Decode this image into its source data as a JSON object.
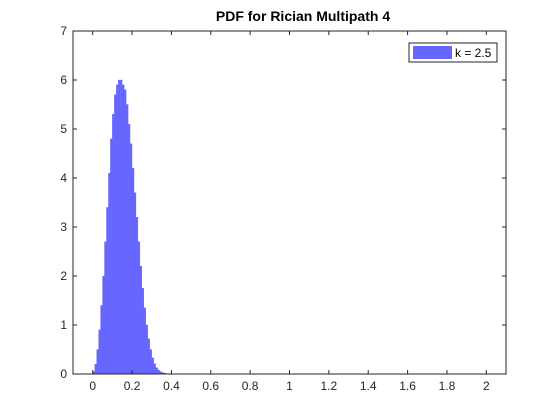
{
  "chart_data": {
    "type": "bar",
    "title": "PDF for Rician Multipath 4",
    "xlabel": "",
    "ylabel": "",
    "xlim": [
      -0.1,
      2.1
    ],
    "ylim": [
      0,
      7
    ],
    "xticks": [
      "0",
      "0.2",
      "0.4",
      "0.6",
      "0.8",
      "1",
      "1.2",
      "1.4",
      "1.6",
      "1.8",
      "2"
    ],
    "xtick_values": [
      0,
      0.2,
      0.4,
      0.6,
      0.8,
      1,
      1.2,
      1.4,
      1.6,
      1.8,
      2
    ],
    "yticks": [
      "0",
      "1",
      "2",
      "3",
      "4",
      "5",
      "6",
      "7"
    ],
    "ytick_values": [
      0,
      1,
      2,
      3,
      4,
      5,
      6,
      7
    ],
    "grid": false,
    "legend_position": "top-right",
    "series": [
      {
        "name": "k = 2.5",
        "color": "#6666ff",
        "x": [
          0.0,
          0.01,
          0.02,
          0.03,
          0.04,
          0.05,
          0.06,
          0.07,
          0.08,
          0.09,
          0.1,
          0.11,
          0.12,
          0.13,
          0.14,
          0.15,
          0.16,
          0.17,
          0.18,
          0.19,
          0.2,
          0.21,
          0.22,
          0.23,
          0.24,
          0.25,
          0.26,
          0.27,
          0.28,
          0.29,
          0.3,
          0.31,
          0.32,
          0.33,
          0.34,
          0.35,
          0.36,
          0.37,
          0.38,
          0.39
        ],
        "values": [
          0.05,
          0.2,
          0.5,
          0.9,
          1.4,
          2.0,
          2.7,
          3.4,
          4.1,
          4.8,
          5.3,
          5.7,
          5.9,
          6.0,
          6.0,
          5.9,
          5.8,
          5.5,
          5.1,
          4.7,
          4.2,
          3.7,
          3.2,
          2.7,
          2.2,
          1.75,
          1.35,
          1.0,
          0.72,
          0.5,
          0.33,
          0.21,
          0.13,
          0.08,
          0.05,
          0.03,
          0.02,
          0.01,
          0.005,
          0.002
        ]
      }
    ]
  }
}
